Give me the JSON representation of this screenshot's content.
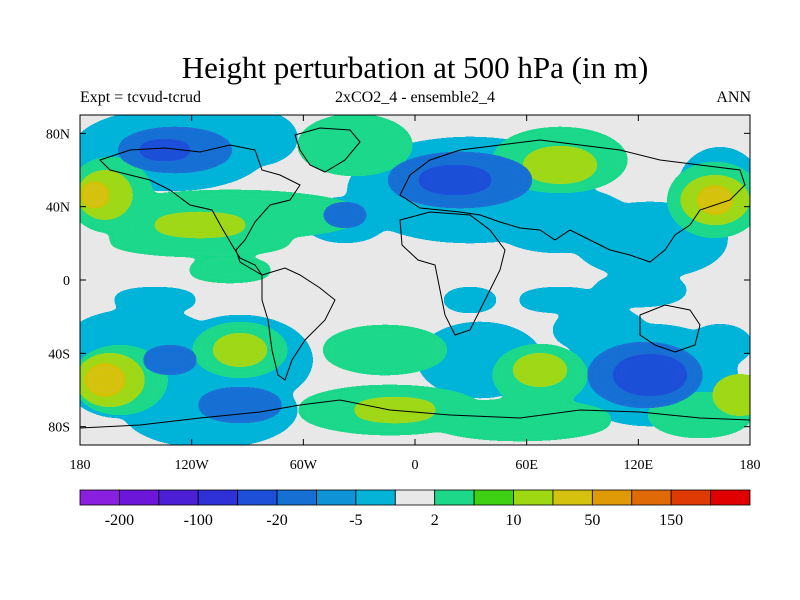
{
  "header": {
    "title": "Height perturbation at 500 hPa (in m)",
    "left_label": "Expt = tcvud-tcrud",
    "center_label": "2xCO2_4 - ensemble2_4",
    "right_label": "ANN"
  },
  "map": {
    "type": "filled-contour",
    "projection": "cylindrical-equidistant",
    "lon_range": [
      -180,
      180
    ],
    "lat_range": [
      -90,
      90
    ],
    "x_tick_labels": [
      "180",
      "120W",
      "60W",
      "0",
      "60E",
      "120E",
      "180"
    ],
    "y_tick_labels": [
      "80N",
      "40N",
      "0",
      "40S",
      "80S"
    ],
    "background_color": "#e8e8e8",
    "coastline_color": "#000000"
  },
  "colorbar": {
    "colors": [
      "#8a1fe0",
      "#6b16d8",
      "#4a1fd6",
      "#2e30d8",
      "#1d4fd8",
      "#1670d4",
      "#0f92d6",
      "#06b3d8",
      "#e8e8e8",
      "#1ed88a",
      "#3ed012",
      "#9ed812",
      "#d4c20e",
      "#e09a08",
      "#e06a06",
      "#e03a04",
      "#e00000"
    ],
    "tick_labels": [
      "-200",
      "-100",
      "-20",
      "-5",
      "2",
      "10",
      "50",
      "150"
    ]
  }
}
